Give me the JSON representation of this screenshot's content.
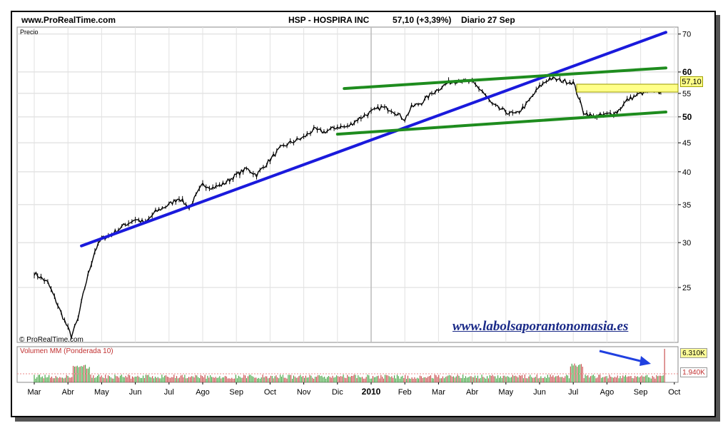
{
  "header": {
    "site": "www.ProRealTime.com",
    "ticker_line": "HSP - HOSPIRA INC",
    "last_price_change": "57,10 (+3,39%)",
    "period": "Diario",
    "date": "27 Sep"
  },
  "chart_data": [
    {
      "type": "line",
      "title": "HSP - HOSPIRA INC",
      "ylabel": "Precio",
      "yscale": "log",
      "ylim": [
        20,
        72
      ],
      "yticks": [
        "70",
        "60",
        "55",
        "50",
        "45",
        "40",
        "35",
        "30",
        "25"
      ],
      "ytick_values": [
        70,
        60,
        55,
        50,
        45,
        40,
        35,
        30,
        25
      ],
      "bold_ticks": [
        60,
        50
      ],
      "x_labels": [
        "Mar",
        "Abr",
        "May",
        "Jun",
        "Jul",
        "Ago",
        "Sep",
        "Oct",
        "Nov",
        "Dic",
        "2010",
        "Feb",
        "Mar",
        "Abr",
        "May",
        "Jun",
        "Jul",
        "Ago",
        "Sep",
        "Oct"
      ],
      "x_label_bold": [
        false,
        false,
        false,
        false,
        false,
        false,
        false,
        false,
        false,
        false,
        true,
        false,
        false,
        false,
        false,
        false,
        false,
        false,
        false,
        false
      ],
      "last_price_label": "57,10",
      "grid": true,
      "series": [
        {
          "x": [
            0,
            0.4,
            0.8,
            1.1,
            1.3,
            1.5,
            1.8,
            2.0,
            2.3,
            2.6,
            3.0,
            3.3,
            3.6,
            4.0,
            4.3,
            4.6,
            5.0,
            5.3,
            5.6,
            6.0,
            6.3,
            6.6,
            7.0,
            7.3,
            7.6,
            8.0,
            8.3,
            8.6,
            9.0,
            9.3,
            9.6,
            10.0,
            10.3,
            10.6,
            11.0,
            11.2,
            11.5,
            11.8,
            12.0,
            12.3,
            12.6,
            13.0,
            13.3,
            13.6,
            14.0,
            14.3,
            14.6,
            15.0,
            15.3,
            15.6,
            16.0,
            16.3,
            16.6,
            17.0,
            17.3,
            17.6,
            18.0,
            18.3,
            18.6,
            18.75
          ],
          "values": [
            26.5,
            25.5,
            22.5,
            20.5,
            22,
            25,
            29,
            30.5,
            31,
            32,
            33,
            32.5,
            34,
            35,
            36,
            34.5,
            38,
            37.5,
            38,
            39.5,
            40.5,
            39.5,
            42,
            44,
            45,
            46,
            47.5,
            47,
            48,
            48,
            49.5,
            51,
            52,
            51.5,
            49.5,
            52,
            53,
            55,
            56,
            57.5,
            58,
            57.5,
            55.5,
            52.5,
            51,
            50.5,
            52.5,
            56.5,
            58.5,
            58,
            57.5,
            51,
            50,
            50.5,
            51,
            53.5,
            55,
            55.5,
            55.2,
            57.1
          ]
        }
      ],
      "trendlines": [
        {
          "color": "#1a1adc",
          "from": [
            1.4,
            29.6
          ],
          "to": [
            18.75,
            70.5
          ]
        },
        {
          "color": "#1e8c1e",
          "from": [
            9.2,
            56.1
          ],
          "to": [
            18.75,
            61
          ]
        },
        {
          "color": "#1e8c1e",
          "from": [
            9.0,
            46.6
          ],
          "to": [
            18.75,
            51
          ]
        }
      ],
      "resistance_zone": [
        55.3,
        57.1
      ],
      "resistance_start_x": 16.1,
      "colors": {
        "price": "#000000",
        "blue_line": "#1a1adc",
        "green_line": "#1e8c1e",
        "zone": "#ffff88"
      }
    },
    {
      "type": "bar",
      "title": "Volumen MM (Ponderada 10)",
      "labels": [
        "6.310K",
        "1.940K"
      ],
      "values_k": [
        6310,
        1940
      ],
      "colors": {
        "up": "#2a9a2a",
        "down": "#c03030"
      }
    }
  ],
  "watermark": {
    "link": "www.labolsaporantonomasia.es",
    "copyright": "© ProRealTime.com"
  }
}
